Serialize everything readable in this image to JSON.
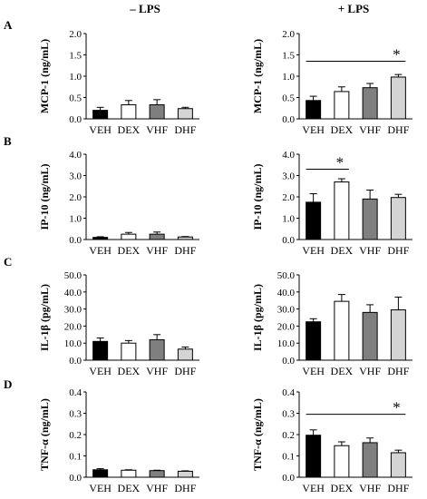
{
  "columns": {
    "left": "– LPS",
    "right": "+ LPS"
  },
  "colors": {
    "VEH": "#000000",
    "DEX": "#ffffff",
    "VHF": "#7f7f7f",
    "DHF": "#d4d4d4"
  },
  "chart_data": [
    {
      "panel": "A",
      "condition": "– LPS",
      "type": "bar",
      "categories": [
        "VEH",
        "DEX",
        "VHF",
        "DHF"
      ],
      "values": [
        0.2,
        0.33,
        0.33,
        0.24
      ],
      "errors": [
        0.07,
        0.1,
        0.12,
        0.03
      ],
      "ylabel": "MCP-1  (ng/mL)",
      "ylim": [
        0,
        2.0
      ],
      "yticks": [
        "0.0",
        "0.5",
        "1.0",
        "1.5",
        "2.0"
      ],
      "significance": []
    },
    {
      "panel": "A",
      "condition": "+ LPS",
      "type": "bar",
      "categories": [
        "VEH",
        "DEX",
        "VHF",
        "DHF"
      ],
      "values": [
        0.43,
        0.64,
        0.73,
        0.98
      ],
      "errors": [
        0.1,
        0.11,
        0.1,
        0.06
      ],
      "ylabel": "MCP-1  (ng/mL)",
      "ylim": [
        0,
        2.0
      ],
      "yticks": [
        "0.0",
        "0.5",
        "1.0",
        "1.5",
        "2.0"
      ],
      "significance": [
        {
          "from": "VEH",
          "to": "DHF",
          "y": 1.35,
          "label": "*"
        }
      ]
    },
    {
      "panel": "B",
      "condition": "– LPS",
      "type": "bar",
      "categories": [
        "VEH",
        "DEX",
        "VHF",
        "DHF"
      ],
      "values": [
        0.1,
        0.25,
        0.25,
        0.12
      ],
      "errors": [
        0.03,
        0.08,
        0.1,
        0.02
      ],
      "ylabel": "IP-10  (ng/mL)",
      "ylim": [
        0,
        4.0
      ],
      "yticks": [
        "0.0",
        "1.0",
        "2.0",
        "3.0",
        "4.0"
      ],
      "significance": []
    },
    {
      "panel": "B",
      "condition": "+ LPS",
      "type": "bar",
      "categories": [
        "VEH",
        "DEX",
        "VHF",
        "DHF"
      ],
      "values": [
        1.75,
        2.7,
        1.9,
        1.97
      ],
      "errors": [
        0.4,
        0.15,
        0.42,
        0.15
      ],
      "ylabel": "IP-10  (ng/mL)",
      "ylim": [
        0,
        4.0
      ],
      "yticks": [
        "0.0",
        "1.0",
        "2.0",
        "3.0",
        "4.0"
      ],
      "significance": [
        {
          "from": "VEH",
          "to": "DEX",
          "y": 3.3,
          "label": "*"
        }
      ]
    },
    {
      "panel": "C",
      "condition": "– LPS",
      "type": "bar",
      "categories": [
        "VEH",
        "DEX",
        "VHF",
        "DHF"
      ],
      "values": [
        11.0,
        10.0,
        12.0,
        6.5
      ],
      "errors": [
        2.0,
        1.5,
        3.0,
        1.2
      ],
      "ylabel": "IL-1β  (pg/mL)",
      "ylim": [
        0,
        50.0
      ],
      "yticks": [
        "0.0",
        "10.0",
        "20.0",
        "30.0",
        "40.0",
        "50.0"
      ],
      "significance": []
    },
    {
      "panel": "C",
      "condition": "+ LPS",
      "type": "bar",
      "categories": [
        "VEH",
        "DEX",
        "VHF",
        "DHF"
      ],
      "values": [
        22.5,
        34.5,
        28.0,
        29.5
      ],
      "errors": [
        1.8,
        4.0,
        4.5,
        7.5
      ],
      "ylabel": "IL-1β  (pg/mL)",
      "ylim": [
        0,
        50.0
      ],
      "yticks": [
        "0.0",
        "10.0",
        "20.0",
        "30.0",
        "40.0",
        "50.0"
      ],
      "significance": []
    },
    {
      "panel": "D",
      "condition": "– LPS",
      "type": "bar",
      "categories": [
        "VEH",
        "DEX",
        "VHF",
        "DHF"
      ],
      "values": [
        0.035,
        0.033,
        0.031,
        0.028
      ],
      "errors": [
        0.005,
        0.002,
        0.002,
        0.002
      ],
      "ylabel": "TNF-α  (ng/mL)",
      "ylim": [
        0,
        0.4
      ],
      "yticks": [
        "0.0",
        "0.1",
        "0.2",
        "0.3",
        "0.4"
      ],
      "significance": []
    },
    {
      "panel": "D",
      "condition": "+ LPS",
      "type": "bar",
      "categories": [
        "VEH",
        "DEX",
        "VHF",
        "DHF"
      ],
      "values": [
        0.197,
        0.148,
        0.162,
        0.115
      ],
      "errors": [
        0.025,
        0.018,
        0.022,
        0.012
      ],
      "ylabel": "TNF-α  (ng/mL)",
      "ylim": [
        0,
        0.4
      ],
      "yticks": [
        "0.0",
        "0.1",
        "0.2",
        "0.3",
        "0.4"
      ],
      "significance": [
        {
          "from": "VEH",
          "to": "DHF",
          "y": 0.295,
          "label": "*"
        }
      ]
    }
  ]
}
